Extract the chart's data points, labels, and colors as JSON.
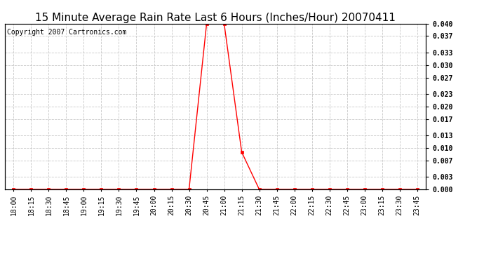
{
  "title": "15 Minute Average Rain Rate Last 6 Hours (Inches/Hour) 20070411",
  "copyright": "Copyright 2007 Cartronics.com",
  "background_color": "#ffffff",
  "line_color": "#ff0000",
  "grid_color": "#c8c8c8",
  "x_labels": [
    "18:00",
    "18:15",
    "18:30",
    "18:45",
    "19:00",
    "19:15",
    "19:30",
    "19:45",
    "20:00",
    "20:15",
    "20:30",
    "20:45",
    "21:00",
    "21:15",
    "21:30",
    "21:45",
    "22:00",
    "22:15",
    "22:30",
    "22:45",
    "23:00",
    "23:15",
    "23:30",
    "23:45"
  ],
  "y_values": [
    0.0,
    0.0,
    0.0,
    0.0,
    0.0,
    0.0,
    0.0,
    0.0,
    0.0,
    0.0,
    0.0,
    0.04,
    0.04,
    0.009,
    0.0,
    0.0,
    0.0,
    0.0,
    0.0,
    0.0,
    0.0,
    0.0,
    0.0,
    0.0
  ],
  "y_ticks": [
    0.0,
    0.003,
    0.007,
    0.01,
    0.013,
    0.017,
    0.02,
    0.023,
    0.027,
    0.03,
    0.033,
    0.037,
    0.04
  ],
  "ylim": [
    0.0,
    0.04
  ],
  "title_fontsize": 11,
  "copyright_fontsize": 7,
  "tick_fontsize": 7
}
